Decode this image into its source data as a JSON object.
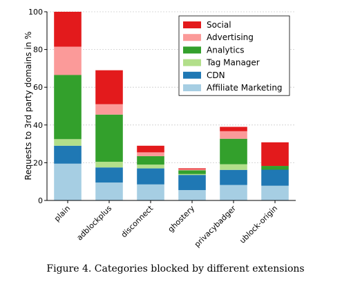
{
  "caption": "Figure 4. Categories blocked by different extensions",
  "chart_data": {
    "type": "bar",
    "stacked": true,
    "title": "",
    "xlabel": "",
    "ylabel": "Requests to 3rd party domains in %",
    "ylim": [
      0,
      100
    ],
    "yticks": [
      0,
      20,
      40,
      60,
      80,
      100
    ],
    "grid": true,
    "legend_position": "top-right",
    "categories": [
      "plain",
      "adblockplus",
      "disconnect",
      "ghostery",
      "privacybadger",
      "ublock-origin"
    ],
    "series": [
      {
        "name": "Affiliate Marketing",
        "color": "#a6cee3",
        "values": [
          19.5,
          9.5,
          8.5,
          5.5,
          8.2,
          7.8
        ]
      },
      {
        "name": "CDN",
        "color": "#1f78b4",
        "values": [
          9.5,
          8.0,
          8.5,
          8.0,
          8.0,
          8.5
        ]
      },
      {
        "name": "Tag Manager",
        "color": "#b2df8a",
        "values": [
          3.5,
          3.0,
          2.0,
          0.5,
          3.0,
          0.0
        ]
      },
      {
        "name": "Analytics",
        "color": "#33a02c",
        "values": [
          34.0,
          25.0,
          4.5,
          2.0,
          13.5,
          2.0
        ]
      },
      {
        "name": "Advertising",
        "color": "#fb9a99",
        "values": [
          15.0,
          5.5,
          2.0,
          0.5,
          4.0,
          0.0
        ]
      },
      {
        "name": "Social",
        "color": "#e31a1c",
        "values": [
          18.5,
          18.0,
          3.5,
          0.5,
          2.3,
          12.5
        ]
      }
    ],
    "legend_order": [
      "Social",
      "Advertising",
      "Analytics",
      "Tag Manager",
      "CDN",
      "Affiliate Marketing"
    ]
  }
}
